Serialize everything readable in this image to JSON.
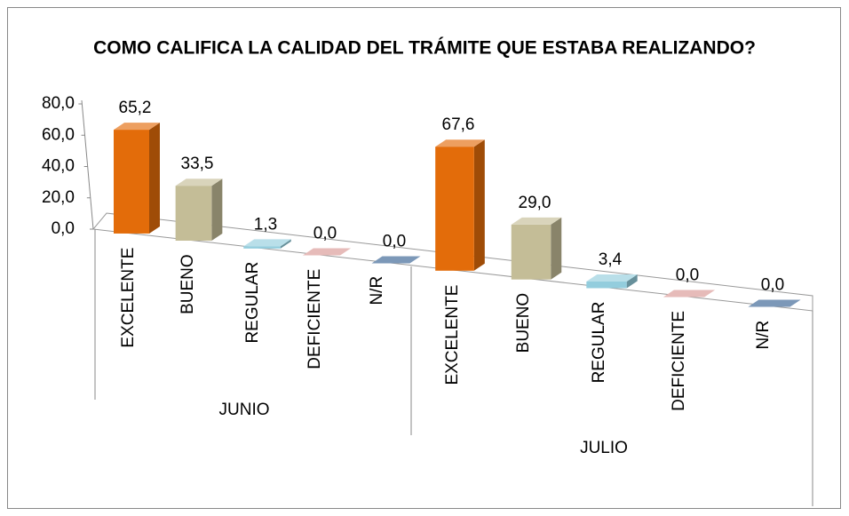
{
  "chart_data": {
    "type": "bar3d",
    "title": "COMO CALIFICA  LA CALIDAD DEL TRÁMITE QUE ESTABA REALIZANDO?",
    "colors": [
      "#e36c0a",
      "#c4bd97",
      "#93cddd",
      "#d99694",
      "#366092"
    ],
    "groups": [
      {
        "name": "JUNIO",
        "categories": [
          "EXCELENTE",
          "BUENO",
          "REGULAR",
          "DEFICIENTE",
          "N/R"
        ],
        "values": [
          65.2,
          33.5,
          1.3,
          0.0,
          0.0
        ],
        "value_labels": [
          "65,2",
          "33,5",
          "1,3",
          "0,0",
          "0,0"
        ]
      },
      {
        "name": "JULIO",
        "categories": [
          "EXCELENTE",
          "BUENO",
          "REGULAR",
          "DEFICIENTE",
          "N/R"
        ],
        "values": [
          67.6,
          29.0,
          3.4,
          0.0,
          0.0
        ],
        "value_labels": [
          "67,6",
          "29,0",
          "3,4",
          "0,0",
          "0,0"
        ]
      }
    ],
    "ylim": [
      0,
      80
    ],
    "yticks": [
      {
        "value": 0,
        "label": "0,0"
      },
      {
        "value": 20,
        "label": "20,0"
      },
      {
        "value": 40,
        "label": "40,0"
      },
      {
        "value": 60,
        "label": "60,0"
      },
      {
        "value": 80,
        "label": "80,0"
      }
    ]
  }
}
